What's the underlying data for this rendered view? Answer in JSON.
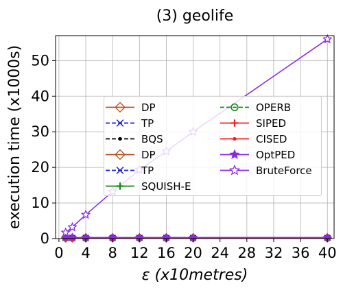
{
  "chart_data": {
    "type": "line",
    "title": "(3) geolife",
    "xlabel_symbol": "ε",
    "xlabel_rest": "(x10metres)",
    "ylabel": "execution time (x1000s)",
    "xlim": [
      -0.5,
      41
    ],
    "ylim": [
      0,
      57
    ],
    "xticks": [
      0,
      4,
      8,
      12,
      16,
      20,
      24,
      28,
      32,
      36,
      40
    ],
    "yticks": [
      0,
      10,
      20,
      30,
      40,
      50
    ],
    "grid": true,
    "legend_position": "center",
    "x": [
      1,
      2,
      4,
      8,
      12,
      16,
      20,
      40
    ],
    "series": [
      {
        "name": "DP",
        "color": "#b5501c",
        "dash": "solid",
        "marker": "diamond-open",
        "values": [
          0.2,
          0.2,
          0.2,
          0.2,
          0.2,
          0.2,
          0.2,
          0.2
        ]
      },
      {
        "name": "TP",
        "color": "#1a1adb",
        "dash": "dashed",
        "marker": "x",
        "values": [
          0.2,
          0.2,
          0.2,
          0.2,
          0.2,
          0.2,
          0.2,
          0.2
        ]
      },
      {
        "name": "BQS",
        "color": "#000000",
        "dash": "dashed",
        "marker": "dot",
        "values": [
          0.1,
          0.1,
          0.1,
          0.1,
          0.1,
          0.1,
          0.1,
          0.1
        ]
      },
      {
        "name": "DP",
        "color": "#b5501c",
        "dash": "solid",
        "marker": "diamond-open",
        "values": [
          0.2,
          0.2,
          0.2,
          0.2,
          0.2,
          0.2,
          0.2,
          0.2
        ]
      },
      {
        "name": "TP",
        "color": "#1a1adb",
        "dash": "dashed",
        "marker": "x",
        "values": [
          0.2,
          0.2,
          0.2,
          0.2,
          0.2,
          0.2,
          0.2,
          0.2
        ]
      },
      {
        "name": "SQUISH-E",
        "color": "#118811",
        "dash": "solid",
        "marker": "plus",
        "values": [
          0.1,
          0.1,
          0.1,
          0.1,
          0.1,
          0.1,
          0.1,
          0.1
        ]
      },
      {
        "name": "OPERB",
        "color": "#118811",
        "dash": "dashed",
        "marker": "circle-open",
        "values": [
          0.1,
          0.1,
          0.1,
          0.1,
          0.1,
          0.1,
          0.1,
          0.1
        ]
      },
      {
        "name": "SIPED",
        "color": "#ff1a1a",
        "dash": "solid",
        "marker": "plus",
        "values": [
          0.1,
          0.1,
          0.1,
          0.1,
          0.1,
          0.1,
          0.1,
          0.1
        ]
      },
      {
        "name": "CISED",
        "color": "#ff1a1a",
        "dash": "solid",
        "marker": "dot",
        "values": [
          0.1,
          0.1,
          0.1,
          0.1,
          0.1,
          0.1,
          0.1,
          0.1
        ]
      },
      {
        "name": "OptPED",
        "color": "#8a2be2",
        "dash": "solid",
        "marker": "star-filled",
        "values": [
          0.3,
          0.3,
          0.3,
          0.3,
          0.3,
          0.3,
          0.3,
          0.3
        ]
      },
      {
        "name": "BruteForce",
        "color": "#8a2be2",
        "dash": "solid",
        "marker": "star-open",
        "values": [
          1.7,
          3.2,
          6.7,
          13.2,
          19.3,
          24.5,
          30.0,
          56.0
        ]
      }
    ]
  }
}
